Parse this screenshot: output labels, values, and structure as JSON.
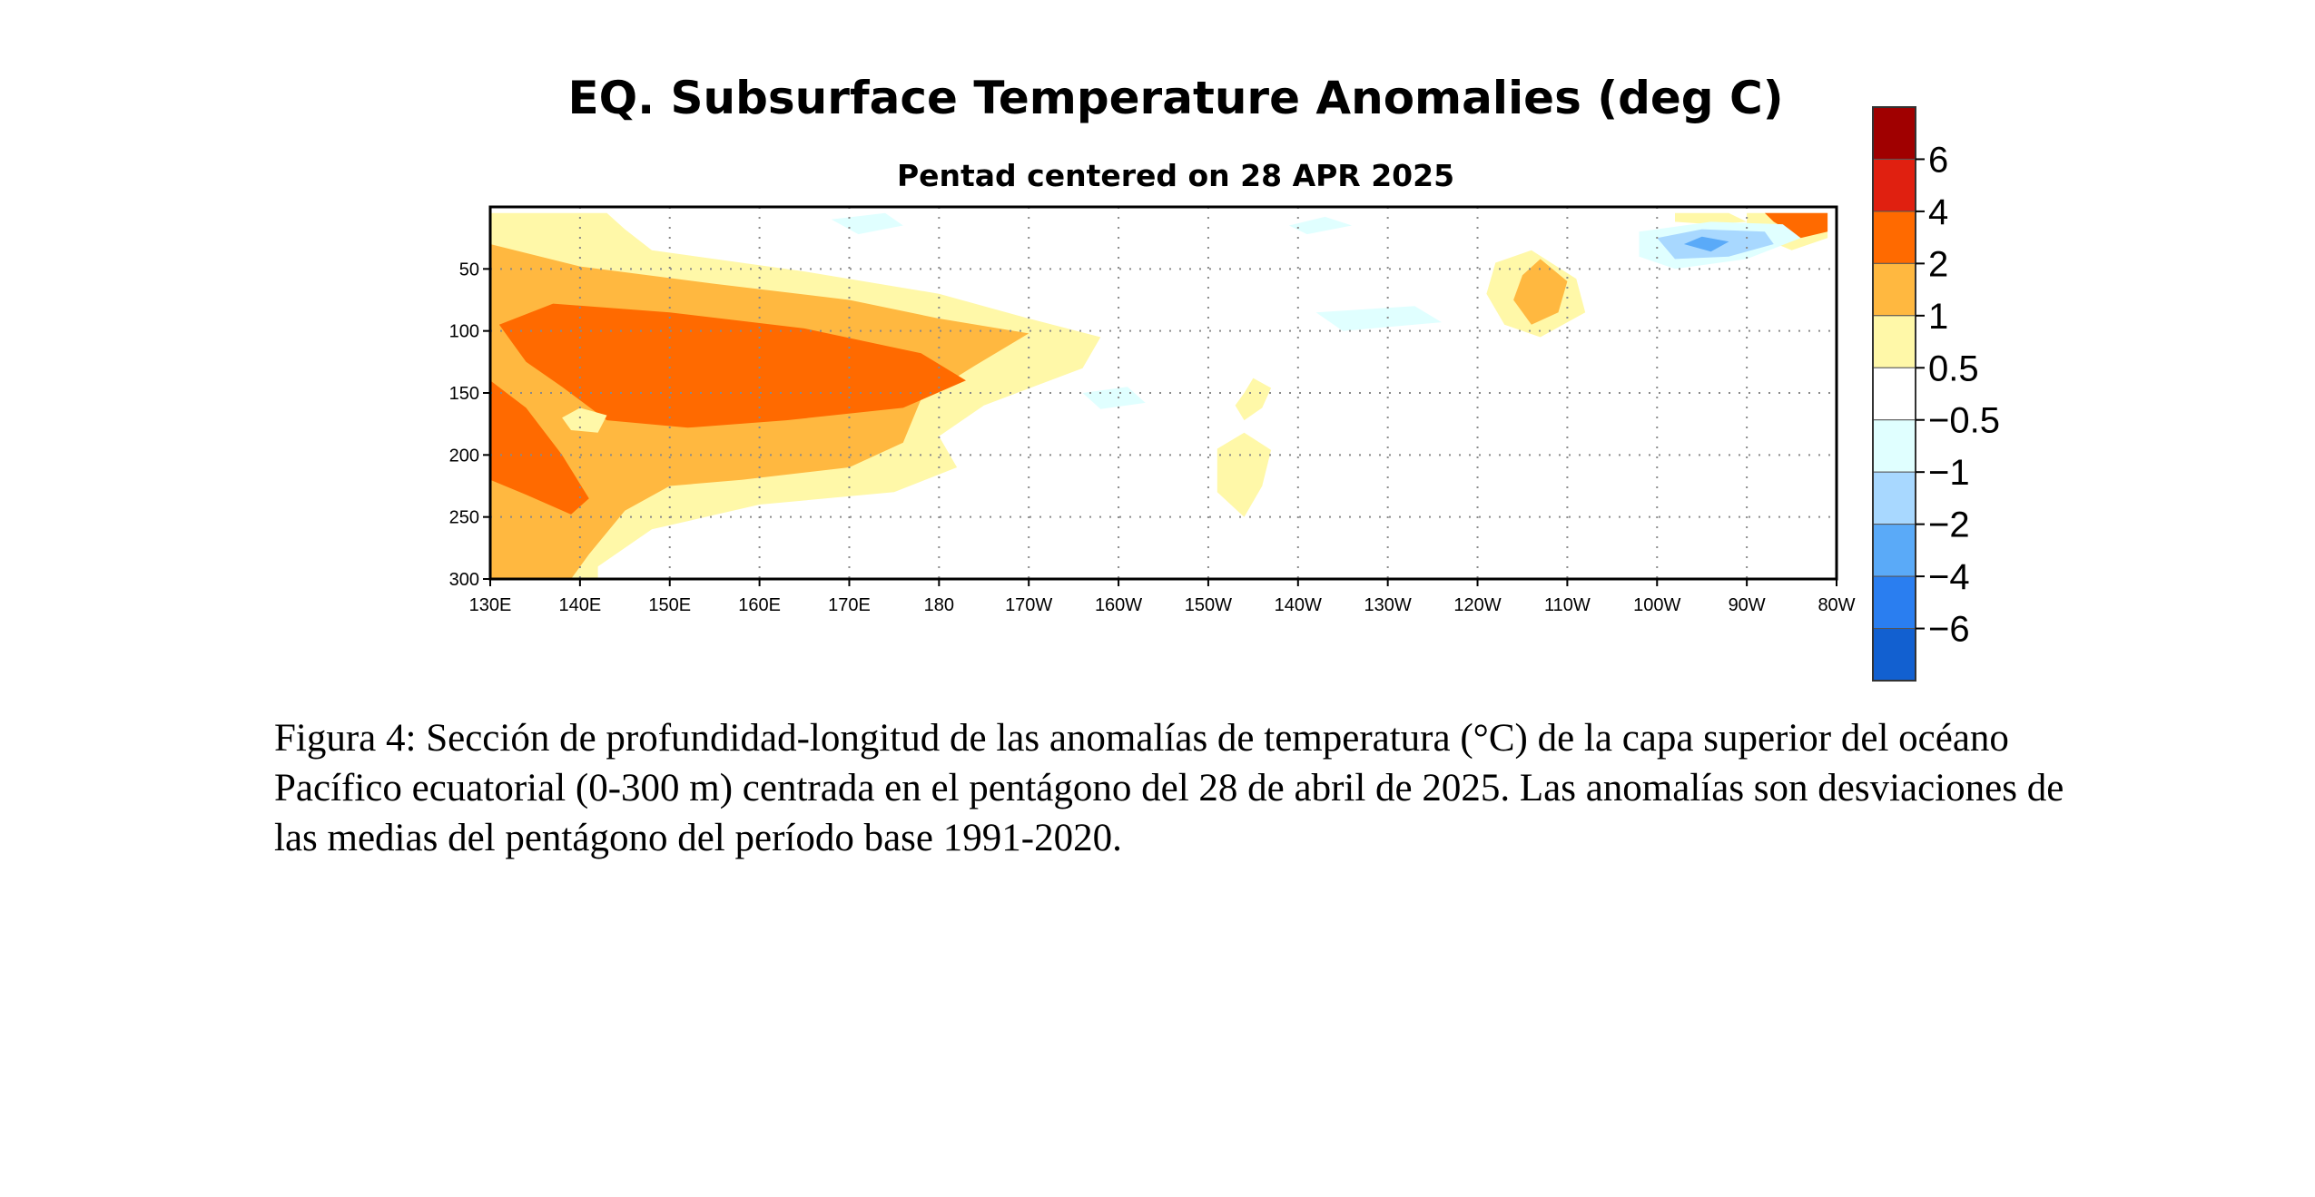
{
  "chart_data": {
    "type": "heatmap",
    "title": "EQ. Subsurface Temperature Anomalies (deg C)",
    "subtitle": "Pentad centered on 28 APR 2025",
    "xlabel": "",
    "ylabel": "",
    "x_ticks": [
      "130E",
      "140E",
      "150E",
      "160E",
      "170E",
      "180",
      "170W",
      "160W",
      "150W",
      "140W",
      "130W",
      "120W",
      "110W",
      "100W",
      "90W",
      "80W"
    ],
    "x_range_deg_east": [
      130,
      280
    ],
    "y_ticks": [
      50,
      100,
      150,
      200,
      250,
      300
    ],
    "y_range": [
      0,
      300
    ],
    "y_reversed": true,
    "grid": "dotted",
    "colorbar": {
      "labels": [
        "6",
        "4",
        "2",
        "1",
        "0.5",
        "−0.5",
        "−1",
        "−2",
        "−4",
        "−6"
      ],
      "colors": [
        "#a00000",
        "#e02010",
        "#ff6a00",
        "#ffb840",
        "#fff8a8",
        "#ffffff",
        "#e0ffff",
        "#a8d8ff",
        "#5aaaf8",
        "#2a7ef0",
        "#1260d0"
      ]
    },
    "regions": [
      {
        "level": 0.5,
        "color": "#fff8a8",
        "pts": [
          [
            130,
            5
          ],
          [
            143,
            5
          ],
          [
            145,
            18
          ],
          [
            148,
            35
          ],
          [
            165,
            52
          ],
          [
            180,
            70
          ],
          [
            190,
            90
          ],
          [
            198,
            105
          ],
          [
            196,
            130
          ],
          [
            185,
            160
          ],
          [
            180,
            185
          ],
          [
            182,
            210
          ],
          [
            175,
            230
          ],
          [
            160,
            240
          ],
          [
            148,
            260
          ],
          [
            142,
            290
          ],
          [
            142,
            300
          ],
          [
            130,
            300
          ]
        ]
      },
      {
        "level": 1,
        "color": "#ffb840",
        "pts": [
          [
            130,
            30
          ],
          [
            140,
            48
          ],
          [
            155,
            62
          ],
          [
            170,
            75
          ],
          [
            180,
            90
          ],
          [
            190,
            102
          ],
          [
            184,
            128
          ],
          [
            178,
            155
          ],
          [
            176,
            190
          ],
          [
            170,
            210
          ],
          [
            158,
            220
          ],
          [
            150,
            225
          ],
          [
            145,
            245
          ],
          [
            141,
            280
          ],
          [
            139,
            300
          ],
          [
            130,
            300
          ]
        ]
      },
      {
        "level": 2,
        "color": "#ff6a00",
        "pts": [
          [
            131,
            95
          ],
          [
            137,
            78
          ],
          [
            150,
            85
          ],
          [
            165,
            98
          ],
          [
            178,
            118
          ],
          [
            183,
            140
          ],
          [
            176,
            162
          ],
          [
            163,
            172
          ],
          [
            152,
            178
          ],
          [
            143,
            172
          ],
          [
            138,
            145
          ],
          [
            134,
            125
          ]
        ]
      },
      {
        "level": 2,
        "color": "#ff6a00",
        "pts": [
          [
            130,
            140
          ],
          [
            134,
            162
          ],
          [
            138,
            200
          ],
          [
            141,
            235
          ],
          [
            139,
            248
          ],
          [
            134,
            232
          ],
          [
            130,
            220
          ]
        ]
      },
      {
        "level": 0.5,
        "color": "#fff8a8",
        "pts": [
          [
            138,
            170
          ],
          [
            140,
            162
          ],
          [
            143,
            168
          ],
          [
            142,
            182
          ],
          [
            139,
            180
          ]
        ]
      },
      {
        "level": 0.5,
        "color": "#fff8a8",
        "pts": [
          [
            242,
            45
          ],
          [
            246,
            35
          ],
          [
            251,
            58
          ],
          [
            252,
            85
          ],
          [
            247,
            105
          ],
          [
            243,
            95
          ],
          [
            241,
            70
          ]
        ]
      },
      {
        "level": 1,
        "color": "#ffb840",
        "pts": [
          [
            245,
            55
          ],
          [
            247,
            42
          ],
          [
            250,
            60
          ],
          [
            249,
            85
          ],
          [
            246,
            95
          ],
          [
            244,
            75
          ]
        ]
      },
      {
        "level": 0.5,
        "color": "#fff8a8",
        "pts": [
          [
            214,
            150
          ],
          [
            215,
            138
          ],
          [
            217,
            146
          ],
          [
            216,
            162
          ],
          [
            214,
            172
          ],
          [
            213,
            160
          ]
        ]
      },
      {
        "level": 0.5,
        "color": "#fff8a8",
        "pts": [
          [
            211,
            195
          ],
          [
            214,
            182
          ],
          [
            217,
            196
          ],
          [
            216,
            225
          ],
          [
            214,
            250
          ],
          [
            211,
            230
          ]
        ]
      },
      {
        "level": 0.5,
        "color": "#fff8a8",
        "pts": [
          [
            262,
            5
          ],
          [
            268,
            5
          ],
          [
            270,
            12
          ],
          [
            266,
            14
          ],
          [
            262,
            12
          ]
        ]
      },
      {
        "level": 0.5,
        "color": "#fff8a8",
        "pts": [
          [
            270,
            5
          ],
          [
            279,
            5
          ],
          [
            279,
            25
          ],
          [
            275,
            35
          ],
          [
            270,
            20
          ]
        ]
      },
      {
        "level": 2,
        "color": "#ff6a00",
        "pts": [
          [
            272,
            5
          ],
          [
            279,
            5
          ],
          [
            279,
            20
          ],
          [
            276,
            25
          ],
          [
            273,
            12
          ]
        ]
      },
      {
        "level": -0.5,
        "color": "#e0ffff",
        "pts": [
          [
            258,
            20
          ],
          [
            266,
            12
          ],
          [
            274,
            14
          ],
          [
            276,
            25
          ],
          [
            270,
            42
          ],
          [
            262,
            50
          ],
          [
            258,
            40
          ]
        ]
      },
      {
        "level": -1,
        "color": "#a8d8ff",
        "pts": [
          [
            260,
            25
          ],
          [
            265,
            18
          ],
          [
            272,
            20
          ],
          [
            273,
            30
          ],
          [
            268,
            40
          ],
          [
            262,
            42
          ]
        ]
      },
      {
        "level": -2,
        "color": "#5aaaf8",
        "pts": [
          [
            263,
            30
          ],
          [
            265,
            24
          ],
          [
            268,
            28
          ],
          [
            266,
            36
          ]
        ]
      },
      {
        "level": -0.5,
        "color": "#e0ffff",
        "pts": [
          [
            168,
            10
          ],
          [
            174,
            5
          ],
          [
            176,
            15
          ],
          [
            171,
            22
          ]
        ]
      },
      {
        "level": -0.5,
        "color": "#e0ffff",
        "pts": [
          [
            219,
            15
          ],
          [
            223,
            8
          ],
          [
            226,
            15
          ],
          [
            221,
            22
          ]
        ]
      },
      {
        "level": -0.5,
        "color": "#e0ffff",
        "pts": [
          [
            222,
            85
          ],
          [
            233,
            80
          ],
          [
            236,
            93
          ],
          [
            225,
            100
          ]
        ]
      },
      {
        "level": -0.5,
        "color": "#e0ffff",
        "pts": [
          [
            196,
            150
          ],
          [
            201,
            145
          ],
          [
            203,
            158
          ],
          [
            198,
            163
          ]
        ]
      }
    ]
  },
  "caption": "Figura 4: Sección de profundidad-longitud de las anomalías de temperatura (°C) de la capa superior del océano Pacífico ecuatorial (0-300 m) centrada en el pentágono del 28 de abril de 2025. Las anomalías son desviaciones de las medias del pentágono del período base 1991-2020."
}
